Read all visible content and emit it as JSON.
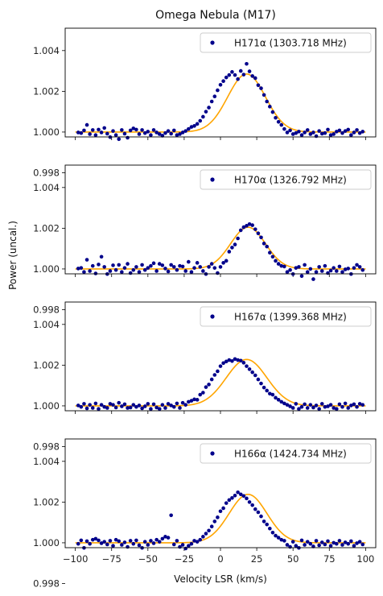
{
  "chart_data": {
    "type": "scatter",
    "title": "Omega Nebula (M17)",
    "xlabel": "Velocity LSR (km/s)",
    "ylabel": "Power (uncal.)",
    "xlim": [
      -107,
      107
    ],
    "ylim": [
      0.99976,
      1.0051
    ],
    "x_ticks": [
      -100,
      -75,
      -50,
      -25,
      0,
      25,
      50,
      75,
      100
    ],
    "y_ticks": [
      0.998,
      1.0,
      1.002,
      1.004
    ],
    "y_tick_labels": [
      "0.998",
      "1.000",
      "1.002",
      "1.004"
    ],
    "legend_position": "top-right",
    "marker_color": "#00008b",
    "fit_color": "#ffa500",
    "panels": [
      {
        "name": "H171α (1303.718 MHz)",
        "fit": {
          "amplitude": 0.00285,
          "center": 18,
          "sigma": 13
        },
        "x": [
          -98,
          -96,
          -94,
          -92,
          -90,
          -88,
          -86,
          -84,
          -82,
          -80,
          -78,
          -76,
          -74,
          -72,
          -70,
          -68,
          -66,
          -64,
          -62,
          -60,
          -58,
          -56,
          -54,
          -52,
          -50,
          -48,
          -46,
          -44,
          -42,
          -40,
          -38,
          -36,
          -34,
          -32,
          -30,
          -28,
          -26,
          -24,
          -22,
          -20,
          -18,
          -16,
          -14,
          -12,
          -10,
          -8,
          -6,
          -4,
          -2,
          0,
          2,
          4,
          6,
          8,
          10,
          12,
          14,
          16,
          18,
          20,
          22,
          24,
          26,
          28,
          30,
          32,
          34,
          36,
          38,
          40,
          42,
          44,
          46,
          48,
          50,
          52,
          54,
          56,
          58,
          60,
          62,
          64,
          66,
          68,
          70,
          72,
          74,
          76,
          78,
          80,
          82,
          84,
          86,
          88,
          90,
          92,
          94,
          96,
          98
        ],
        "y": [
          0.99998,
          0.99995,
          1.00008,
          1.00035,
          0.9999,
          1.0001,
          0.99985,
          1.00012,
          0.99998,
          1.0002,
          0.99992,
          0.99975,
          1.00005,
          0.99985,
          0.99965,
          1.0001,
          0.99992,
          0.99972,
          1.00008,
          1.00018,
          1.00012,
          0.9999,
          1.0001,
          0.99995,
          1.00002,
          0.99985,
          1.0001,
          0.99998,
          0.9999,
          0.99982,
          0.99995,
          1.00005,
          0.99992,
          1.00008,
          0.99985,
          0.9999,
          0.99998,
          1.00005,
          1.00015,
          1.00025,
          1.0003,
          1.0004,
          1.00055,
          1.00075,
          1.001,
          1.0012,
          1.0015,
          1.00175,
          1.00205,
          1.00232,
          1.0025,
          1.00268,
          1.0028,
          1.00295,
          1.0028,
          1.0026,
          1.003,
          1.00282,
          1.00335,
          1.00298,
          1.00275,
          1.00265,
          1.0023,
          1.00215,
          1.00182,
          1.0015,
          1.00125,
          1.00098,
          1.0007,
          1.0005,
          1.00035,
          1.00015,
          0.99998,
          1.00008,
          0.9999,
          0.99995,
          1.00002,
          0.99985,
          0.99998,
          1.0001,
          0.9999,
          0.99998,
          0.9998,
          1.00005,
          0.99992,
          0.99995,
          1.00012,
          0.99985,
          0.9999,
          1.00002,
          1.00008,
          0.99995,
          1.00005,
          1.00012,
          0.99985,
          0.99998,
          1.0001,
          0.99995,
          1.00002
        ]
      },
      {
        "name": "H170α (1326.792 MHz)",
        "fit": {
          "amplitude": 0.00205,
          "center": 19,
          "sigma": 12
        },
        "x": [
          -98,
          -96,
          -94,
          -92,
          -90,
          -88,
          -86,
          -84,
          -82,
          -80,
          -78,
          -76,
          -74,
          -72,
          -70,
          -68,
          -66,
          -64,
          -62,
          -60,
          -58,
          -56,
          -54,
          -52,
          -50,
          -48,
          -46,
          -44,
          -42,
          -40,
          -38,
          -36,
          -34,
          -32,
          -30,
          -28,
          -26,
          -24,
          -22,
          -20,
          -18,
          -16,
          -14,
          -12,
          -10,
          -8,
          -6,
          -4,
          -2,
          0,
          2,
          4,
          6,
          8,
          10,
          12,
          14,
          16,
          18,
          20,
          22,
          24,
          26,
          28,
          30,
          32,
          34,
          36,
          38,
          40,
          42,
          44,
          46,
          48,
          50,
          52,
          54,
          56,
          58,
          60,
          62,
          64,
          66,
          68,
          70,
          72,
          74,
          76,
          78,
          80,
          82,
          84,
          86,
          88,
          90,
          92,
          94,
          96,
          98
        ],
        "y": [
          1.00002,
          1.00005,
          0.99985,
          1.00045,
          0.9999,
          1.00015,
          0.99978,
          1.00022,
          1.0006,
          1.0001,
          0.99975,
          0.9999,
          1.00018,
          0.99995,
          1.0002,
          0.99985,
          1.00005,
          1.00025,
          0.9998,
          0.99995,
          1.0001,
          0.99985,
          1.0002,
          0.99995,
          1.00005,
          1.00015,
          1.00028,
          0.9999,
          1.00025,
          1.00018,
          1.00002,
          0.99988,
          1.0002,
          1.0001,
          0.99995,
          1.00015,
          1.00012,
          0.9999,
          1.00035,
          0.99985,
          1.00005,
          1.0003,
          1.0001,
          0.9999,
          0.99975,
          1.0001,
          1.00025,
          1.00005,
          0.9998,
          1.0001,
          1.0003,
          1.0004,
          1.00085,
          1.00105,
          1.0012,
          1.0015,
          1.0019,
          1.00205,
          1.00212,
          1.0022,
          1.00215,
          1.00195,
          1.00175,
          1.00155,
          1.00125,
          1.0011,
          1.0008,
          1.0006,
          1.0004,
          1.00025,
          1.00015,
          1.00012,
          0.99985,
          0.99995,
          0.99975,
          1.00005,
          1.0001,
          0.99965,
          1.0002,
          0.99985,
          1.0,
          0.9995,
          0.99985,
          1.0001,
          0.9999,
          1.00015,
          0.9998,
          0.99992,
          1.00005,
          0.9999,
          1.00012,
          0.99985,
          0.99998,
          1.00002,
          0.99975,
          1.00005,
          1.0002,
          1.0001,
          0.99995
        ]
      },
      {
        "name": "H167α (1399.368 MHz)",
        "fit": {
          "amplitude": 0.00228,
          "center": 18,
          "sigma": 14
        },
        "x": [
          -98,
          -96,
          -94,
          -92,
          -90,
          -88,
          -86,
          -84,
          -82,
          -80,
          -78,
          -76,
          -74,
          -72,
          -70,
          -68,
          -66,
          -64,
          -62,
          -60,
          -58,
          -56,
          -54,
          -52,
          -50,
          -48,
          -46,
          -44,
          -42,
          -40,
          -38,
          -36,
          -34,
          -32,
          -30,
          -28,
          -26,
          -24,
          -22,
          -20,
          -18,
          -16,
          -14,
          -12,
          -10,
          -8,
          -6,
          -4,
          -2,
          0,
          2,
          4,
          6,
          8,
          10,
          12,
          14,
          16,
          18,
          20,
          22,
          24,
          26,
          28,
          30,
          32,
          34,
          36,
          38,
          40,
          42,
          44,
          46,
          48,
          50,
          52,
          54,
          56,
          58,
          60,
          62,
          64,
          66,
          68,
          70,
          72,
          74,
          76,
          78,
          80,
          82,
          84,
          86,
          88,
          90,
          92,
          94,
          96,
          98
        ],
        "y": [
          1.00002,
          0.99995,
          1.0001,
          0.99988,
          1.00005,
          0.9999,
          1.00012,
          0.99985,
          1.00005,
          0.99995,
          0.9999,
          1.0001,
          1.00005,
          0.99992,
          1.00015,
          0.99998,
          1.00008,
          0.9999,
          0.99992,
          1.00005,
          0.99995,
          1.00002,
          0.99988,
          0.99998,
          1.0001,
          0.99985,
          1.00008,
          0.99992,
          0.99985,
          1.00005,
          0.9999,
          1.0001,
          1.00002,
          0.99995,
          1.00012,
          0.9999,
          1.00015,
          1.00005,
          1.0002,
          1.00025,
          1.00032,
          1.0003,
          1.00055,
          1.00065,
          1.00092,
          1.00105,
          1.0013,
          1.00152,
          1.0017,
          1.00195,
          1.0021,
          1.00218,
          1.00225,
          1.0022,
          1.0023,
          1.00225,
          1.00222,
          1.00212,
          1.00195,
          1.0018,
          1.00165,
          1.0015,
          1.0013,
          1.0011,
          1.0009,
          1.00075,
          1.0006,
          1.00055,
          1.0004,
          1.0003,
          1.0002,
          1.00012,
          1.00005,
          0.99998,
          0.9999,
          1.0001,
          0.99985,
          0.99995,
          1.00008,
          0.9999,
          1.00005,
          0.99992,
          1.00002,
          0.99985,
          1.0001,
          0.99995,
          0.99998,
          1.00005,
          0.9999,
          0.99985,
          1.00008,
          0.99995,
          1.00012,
          0.9999,
          1.00002,
          1.00008,
          0.99995,
          1.0001,
          1.00005
        ]
      },
      {
        "name": "H166α (1424.734 MHz)",
        "fit": {
          "amplitude": 0.00238,
          "center": 19,
          "sigma": 13
        },
        "x": [
          -98,
          -96,
          -94,
          -92,
          -90,
          -88,
          -86,
          -84,
          -82,
          -80,
          -78,
          -76,
          -74,
          -72,
          -70,
          -68,
          -66,
          -64,
          -62,
          -60,
          -58,
          -56,
          -54,
          -52,
          -50,
          -48,
          -46,
          -44,
          -42,
          -40,
          -38,
          -36,
          -34,
          -32,
          -30,
          -28,
          -26,
          -24,
          -22,
          -20,
          -18,
          -16,
          -14,
          -12,
          -10,
          -8,
          -6,
          -4,
          -2,
          0,
          2,
          4,
          6,
          8,
          10,
          12,
          14,
          16,
          18,
          20,
          22,
          24,
          26,
          28,
          30,
          32,
          34,
          36,
          38,
          40,
          42,
          44,
          46,
          48,
          50,
          52,
          54,
          56,
          58,
          60,
          62,
          64,
          66,
          68,
          70,
          72,
          74,
          76,
          78,
          80,
          82,
          84,
          86,
          88,
          90,
          92,
          94,
          96,
          98
        ],
        "y": [
          0.99995,
          1.00012,
          0.99975,
          1.00008,
          0.99995,
          1.00015,
          1.0002,
          1.00012,
          0.99998,
          1.00005,
          0.99992,
          1.0001,
          0.99985,
          1.00015,
          1.00008,
          0.9999,
          1.00002,
          0.9998,
          1.0001,
          0.99995,
          1.00012,
          0.99988,
          0.99975,
          1.00005,
          0.9999,
          1.0001,
          0.99998,
          1.00015,
          1.00005,
          1.0002,
          1.0003,
          1.00025,
          1.00135,
          0.99992,
          1.0001,
          0.9998,
          0.9999,
          0.99972,
          0.99985,
          0.99995,
          1.0001,
          1.00005,
          1.00015,
          1.0003,
          1.00045,
          1.0006,
          1.0008,
          1.00105,
          1.00125,
          1.00155,
          1.0017,
          1.00195,
          1.0021,
          1.0022,
          1.00232,
          1.00248,
          1.00238,
          1.0023,
          1.00218,
          1.002,
          1.00185,
          1.00165,
          1.0015,
          1.0013,
          1.00105,
          1.0009,
          1.0007,
          1.0005,
          1.00035,
          1.00025,
          1.00015,
          1.0001,
          0.9999,
          0.9998,
          1.00005,
          0.99985,
          0.99975,
          1.00012,
          0.9999,
          1.00005,
          0.99995,
          0.99982,
          1.0001,
          0.99988,
          1.00002,
          0.99992,
          1.00008,
          0.99985,
          1.0,
          0.99995,
          1.0001,
          0.9999,
          1.00002,
          0.99995,
          1.00008,
          0.99985,
          0.99998,
          1.00005,
          0.99992
        ]
      }
    ]
  }
}
